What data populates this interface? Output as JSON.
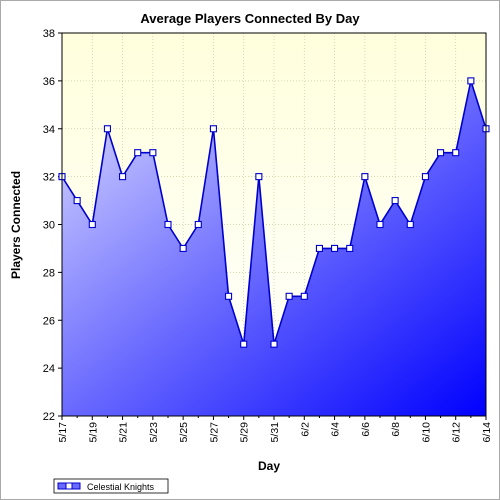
{
  "chart_data": {
    "type": "area",
    "title": "Average Players Connected By Day",
    "xlabel": "Day",
    "ylabel": "Players Connected",
    "ylim": [
      22,
      38
    ],
    "yticks": [
      22,
      24,
      26,
      28,
      30,
      32,
      34,
      36,
      38
    ],
    "x": [
      "5/17",
      "5/18",
      "5/19",
      "5/20",
      "5/21",
      "5/22",
      "5/23",
      "5/24",
      "5/25",
      "5/26",
      "5/27",
      "5/28",
      "5/29",
      "5/30",
      "5/31",
      "6/1",
      "6/2",
      "6/3",
      "6/4",
      "6/5",
      "6/6",
      "6/7",
      "6/8",
      "6/9",
      "6/10",
      "6/11",
      "6/12",
      "6/13",
      "6/14"
    ],
    "x_tick_labels": [
      "5/17",
      "5/19",
      "5/21",
      "5/23",
      "5/25",
      "5/27",
      "5/29",
      "5/31",
      "6/2",
      "6/4",
      "6/6",
      "6/8",
      "6/10",
      "6/12",
      "6/14"
    ],
    "series": [
      {
        "name": "Celestial Knights",
        "values": [
          32,
          31,
          30,
          34,
          32,
          33,
          33,
          30,
          29,
          30,
          34,
          27,
          25,
          32,
          25,
          27,
          27,
          29,
          29,
          29,
          32,
          30,
          31,
          30,
          32,
          33,
          33,
          36,
          34
        ]
      }
    ],
    "grid": true,
    "legend": "bottom-left",
    "colors": {
      "line": "#0000cc",
      "fill_light": "#d8d8ff",
      "fill_dark": "#0000ff",
      "plot_bg_top": "#ffffdd",
      "marker_fill": "#ffffff"
    }
  }
}
